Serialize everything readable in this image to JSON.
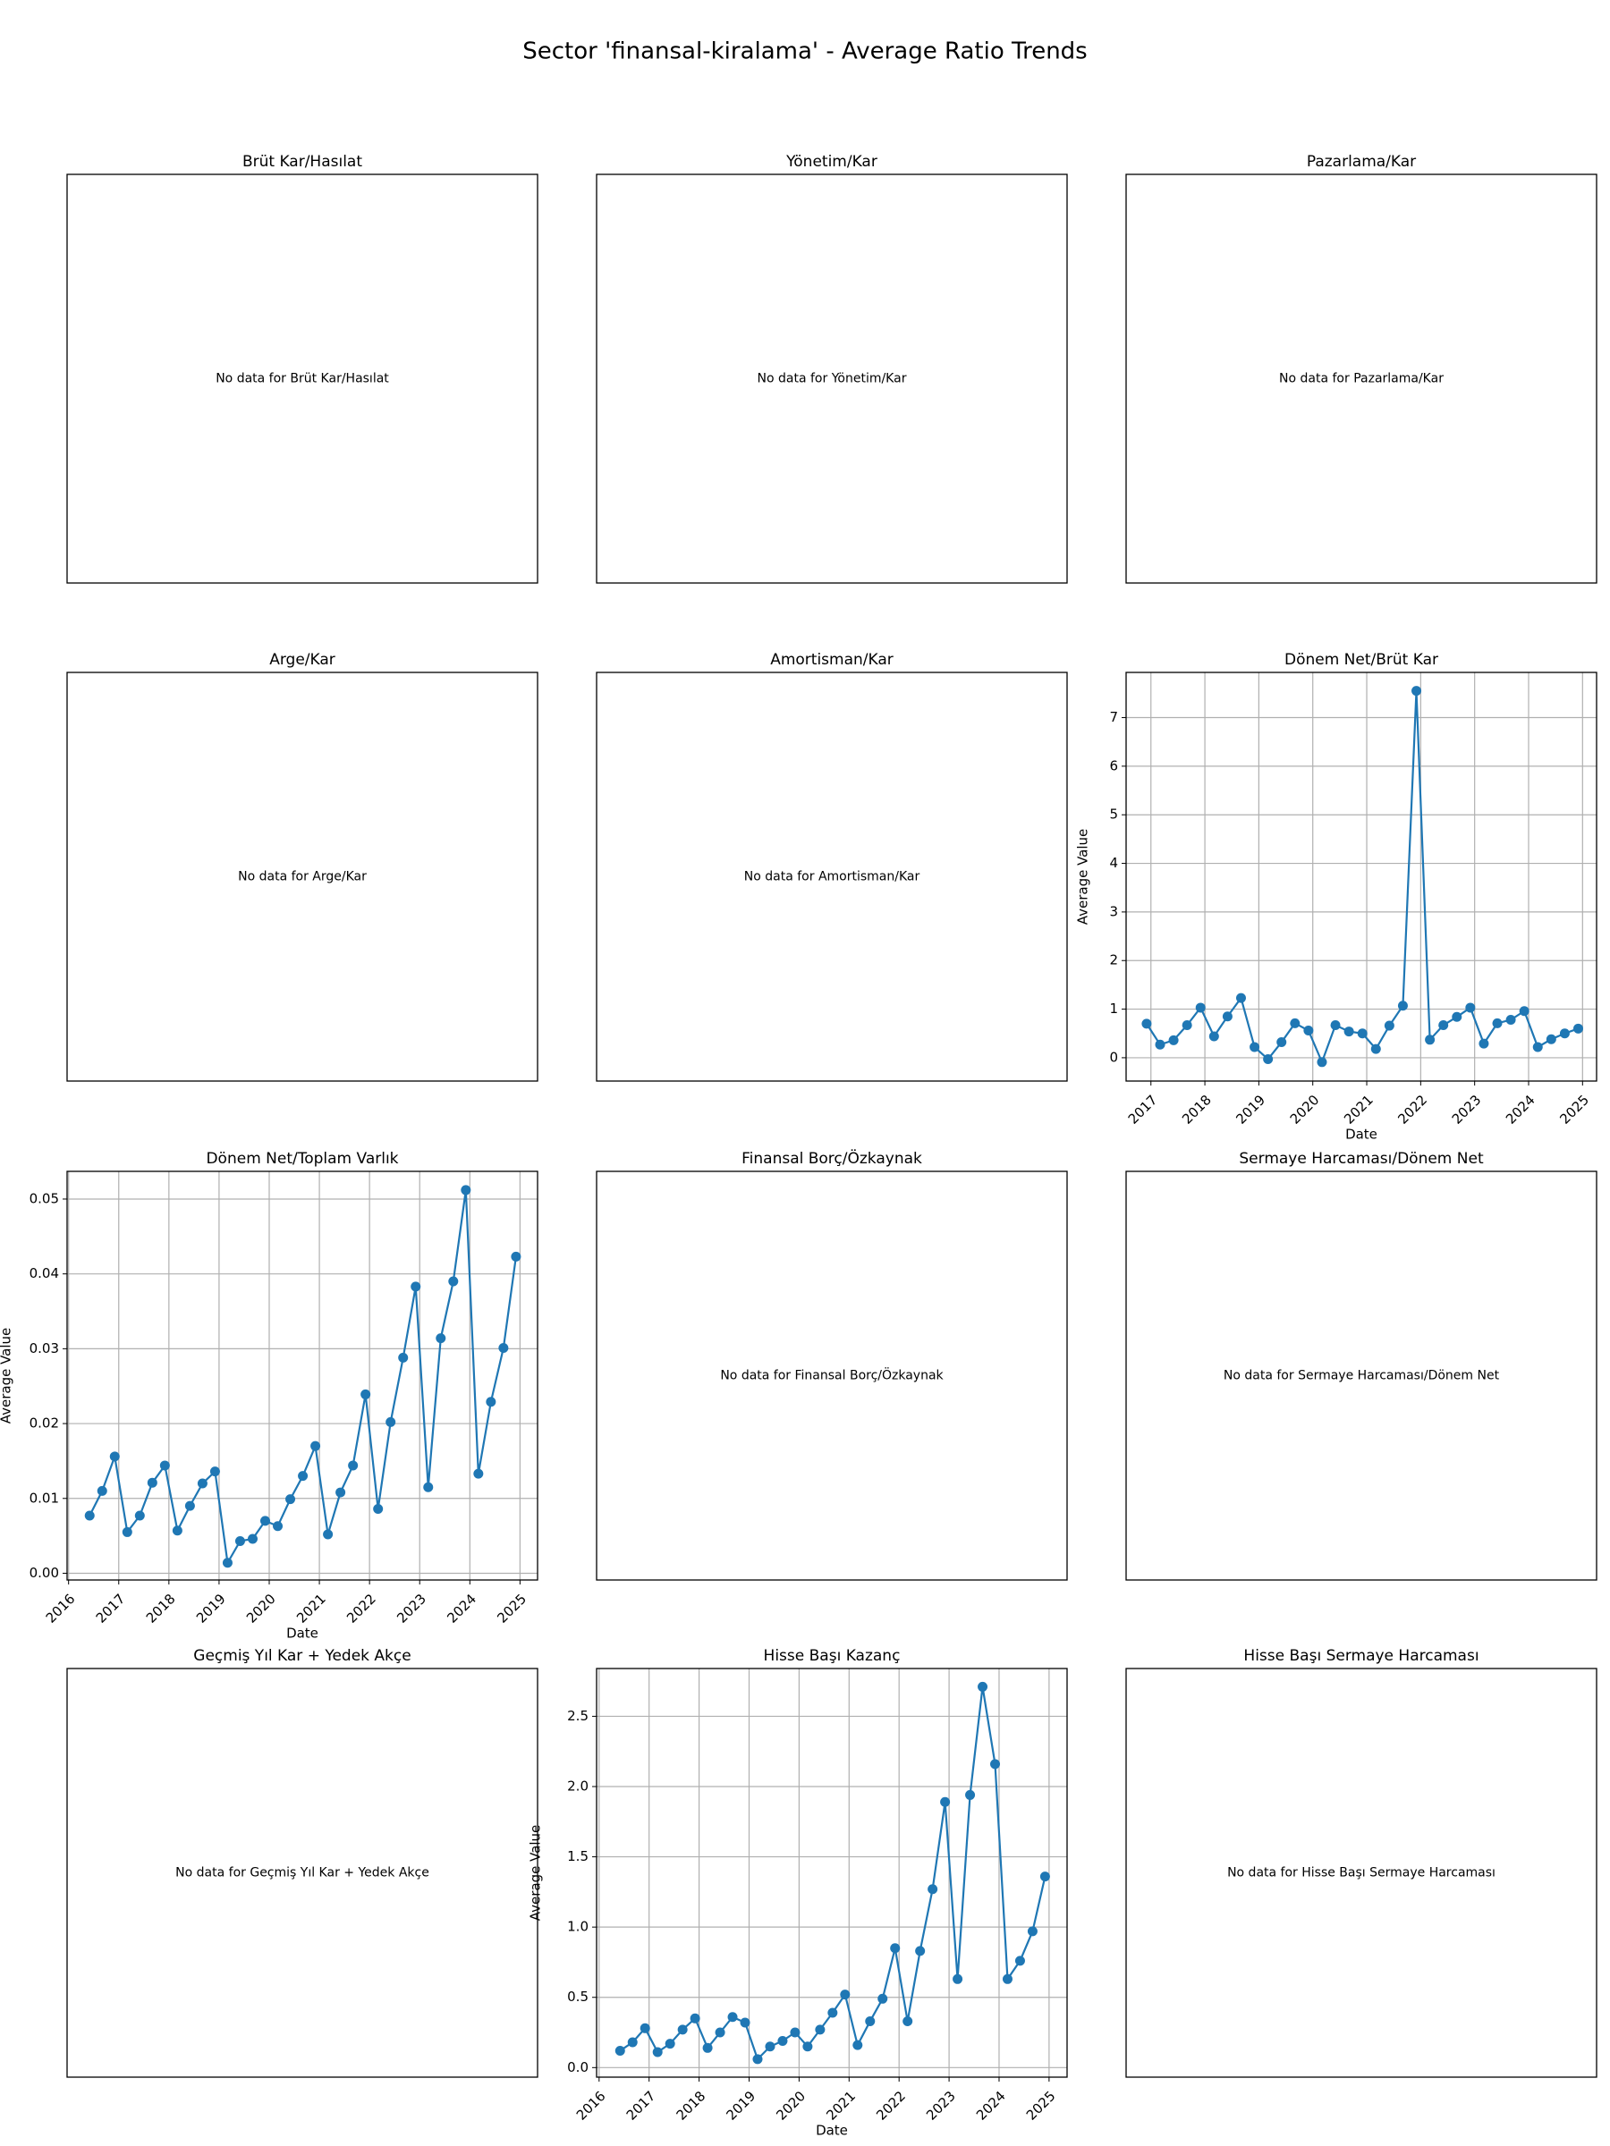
{
  "title": "Sector 'finansal-kiralama' - Average Ratio Trends",
  "chart_data": [
    {
      "type": "empty",
      "title": "Brüt Kar/Hasılat",
      "message": "No data for Brüt Kar/Hasılat"
    },
    {
      "type": "empty",
      "title": "Yönetim/Kar",
      "message": "No data for Yönetim/Kar"
    },
    {
      "type": "empty",
      "title": "Pazarlama/Kar",
      "message": "No data for Pazarlama/Kar"
    },
    {
      "type": "empty",
      "title": "Arge/Kar",
      "message": "No data for Arge/Kar"
    },
    {
      "type": "empty",
      "title": "Amortisman/Kar",
      "message": "No data for Amortisman/Kar"
    },
    {
      "type": "line",
      "title": "Dönem Net/Brüt Kar",
      "xlabel": "Date",
      "ylabel": "Average Value",
      "color": "#1f77b4",
      "grid": true,
      "x": [
        2016.92,
        2017.17,
        2017.42,
        2017.67,
        2017.92,
        2018.17,
        2018.42,
        2018.67,
        2018.92,
        2019.17,
        2019.42,
        2019.67,
        2019.92,
        2020.17,
        2020.42,
        2020.67,
        2020.92,
        2021.17,
        2021.42,
        2021.67,
        2021.92,
        2022.17,
        2022.42,
        2022.67,
        2022.92,
        2023.17,
        2023.42,
        2023.67,
        2023.92,
        2024.17,
        2024.42,
        2024.67,
        2024.92
      ],
      "values": [
        0.7,
        0.27,
        0.36,
        0.67,
        1.03,
        0.44,
        0.85,
        1.23,
        0.22,
        -0.03,
        0.32,
        0.71,
        0.56,
        -0.09,
        0.67,
        0.54,
        0.5,
        0.18,
        0.66,
        1.07,
        7.55,
        0.37,
        0.67,
        0.84,
        1.03,
        0.29,
        0.71,
        0.78,
        0.96,
        0.22,
        0.38,
        0.5,
        0.6
      ],
      "xlim": [
        2016.54,
        2025.26
      ],
      "xticks": [
        2017,
        2018,
        2019,
        2020,
        2021,
        2022,
        2023,
        2024,
        2025
      ],
      "ylim": [
        -0.48,
        7.93
      ],
      "yticks": [
        0,
        1,
        2,
        3,
        4,
        5,
        6,
        7
      ]
    },
    {
      "type": "line",
      "title": "Dönem Net/Toplam Varlık",
      "xlabel": "Date",
      "ylabel": "Average Value",
      "color": "#1f77b4",
      "grid": true,
      "x": [
        2016.42,
        2016.67,
        2016.92,
        2017.17,
        2017.42,
        2017.67,
        2017.92,
        2018.17,
        2018.42,
        2018.67,
        2018.92,
        2019.17,
        2019.42,
        2019.67,
        2019.92,
        2020.17,
        2020.42,
        2020.67,
        2020.92,
        2021.17,
        2021.42,
        2021.67,
        2021.92,
        2022.17,
        2022.42,
        2022.67,
        2022.92,
        2023.17,
        2023.42,
        2023.67,
        2023.92,
        2024.17,
        2024.42,
        2024.67,
        2024.92
      ],
      "values": [
        0.0077,
        0.011,
        0.0156,
        0.0055,
        0.0077,
        0.0121,
        0.0144,
        0.0057,
        0.009,
        0.012,
        0.0136,
        0.0014,
        0.0043,
        0.0046,
        0.007,
        0.0063,
        0.0099,
        0.013,
        0.017,
        0.0052,
        0.0108,
        0.0144,
        0.0239,
        0.0086,
        0.0202,
        0.0288,
        0.0383,
        0.0115,
        0.0314,
        0.039,
        0.0512,
        0.0133,
        0.0229,
        0.0301,
        0.0423
      ],
      "xlim": [
        2015.97,
        2025.35
      ],
      "xticks": [
        2016,
        2017,
        2018,
        2019,
        2020,
        2021,
        2022,
        2023,
        2024,
        2025
      ],
      "ylim": [
        -0.0009,
        0.0537
      ],
      "yticks": [
        {
          "value": 0,
          "label": "0.00"
        },
        0.01,
        0.02,
        0.03,
        0.04,
        0.05
      ]
    },
    {
      "type": "empty",
      "title": "Finansal Borç/Özkaynak",
      "message": "No data for Finansal Borç/Özkaynak"
    },
    {
      "type": "empty",
      "title": "Sermaye Harcaması/Dönem Net",
      "message": "No data for Sermaye Harcaması/Dönem Net"
    },
    {
      "type": "empty",
      "title": "Geçmiş Yıl Kar + Yedek Akçe",
      "message": "No data for Geçmiş Yıl Kar + Yedek Akçe"
    },
    {
      "type": "line",
      "title": "Hisse Başı Kazanç",
      "xlabel": "Date",
      "ylabel": "Average Value",
      "color": "#1f77b4",
      "grid": true,
      "x": [
        2016.42,
        2016.67,
        2016.92,
        2017.17,
        2017.42,
        2017.67,
        2017.92,
        2018.17,
        2018.42,
        2018.67,
        2018.92,
        2019.17,
        2019.42,
        2019.67,
        2019.92,
        2020.17,
        2020.42,
        2020.67,
        2020.92,
        2021.17,
        2021.42,
        2021.67,
        2021.92,
        2022.17,
        2022.42,
        2022.67,
        2022.92,
        2023.17,
        2023.42,
        2023.67,
        2023.92,
        2024.17,
        2024.42,
        2024.67,
        2024.92
      ],
      "values": [
        0.12,
        0.18,
        0.28,
        0.11,
        0.17,
        0.27,
        0.35,
        0.14,
        0.25,
        0.36,
        0.32,
        0.06,
        0.15,
        0.19,
        0.25,
        0.15,
        0.27,
        0.39,
        0.52,
        0.16,
        0.33,
        0.49,
        0.85,
        0.33,
        0.83,
        1.27,
        1.89,
        0.63,
        1.94,
        2.71,
        2.16,
        0.63,
        0.76,
        0.97,
        1.36
      ],
      "xlim": [
        2015.95,
        2025.36
      ],
      "xticks": [
        2016,
        2017,
        2018,
        2019,
        2020,
        2021,
        2022,
        2023,
        2024,
        2025
      ],
      "ylim": [
        -0.068,
        2.84
      ],
      "yticks": [
        {
          "value": 0,
          "label": "0.0"
        },
        0.5,
        {
          "value": 1,
          "label": "1.0"
        },
        1.5,
        {
          "value": 2,
          "label": "2.0"
        },
        2.5
      ]
    },
    {
      "type": "empty",
      "title": "Hisse Başı Sermaye Harcaması",
      "message": "No data for Hisse Başı Sermaye Harcaması"
    }
  ]
}
